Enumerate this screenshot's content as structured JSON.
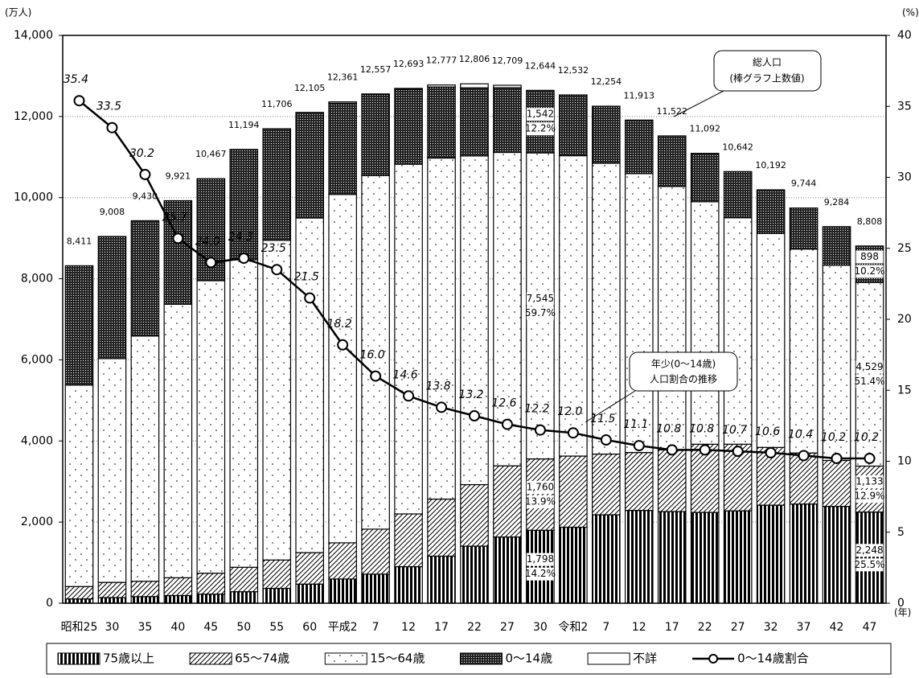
{
  "chart_data": {
    "type": "bar",
    "units": {
      "y": "(万人)",
      "y2": "(%)",
      "x": "(年)"
    },
    "categories": [
      "昭和25",
      "30",
      "35",
      "40",
      "45",
      "50",
      "55",
      "60",
      "平成2",
      "7",
      "12",
      "17",
      "22",
      "27",
      "30",
      "令和2",
      "7",
      "12",
      "17",
      "22",
      "27",
      "32",
      "37",
      "42",
      "47"
    ],
    "ylim": [
      0,
      14000
    ],
    "yticks": [
      0,
      {
        "value": 2000,
        "label": "2,000"
      },
      {
        "value": 4000,
        "label": "4,000"
      },
      {
        "value": 6000,
        "label": "6,000"
      },
      {
        "value": 8000,
        "label": "8,000"
      },
      {
        "value": 10000,
        "label": "10,000"
      },
      {
        "value": 12000,
        "label": "12,000"
      },
      {
        "value": 14000,
        "label": "14,000"
      }
    ],
    "y2lim": [
      0,
      40
    ],
    "y2ticks": [
      0,
      5,
      10,
      15,
      20,
      25,
      30,
      35,
      40
    ],
    "grid": true,
    "series": [
      {
        "name": "75歳以上",
        "color": "#000000",
        "pattern": "vstripe",
        "values": [
          106,
          139,
          163,
          189,
          224,
          284,
          366,
          471,
          597,
          717,
          901,
          1160,
          1407,
          1632,
          1798,
          1874,
          2180,
          2288,
          2260,
          2239,
          2277,
          2417,
          2446,
          2387,
          2248
        ],
        "value_labels": [
          null,
          null,
          null,
          null,
          null,
          null,
          null,
          null,
          null,
          null,
          null,
          null,
          null,
          null,
          "1,798",
          null,
          null,
          null,
          null,
          null,
          null,
          null,
          null,
          null,
          "2,248"
        ],
        "share_labels": [
          null,
          null,
          null,
          null,
          null,
          null,
          null,
          null,
          null,
          null,
          null,
          null,
          null,
          null,
          "14.2%",
          null,
          null,
          null,
          null,
          null,
          null,
          null,
          null,
          null,
          "25.5%"
        ]
      },
      {
        "name": "65～74歳",
        "color": "#000000",
        "pattern": "diag",
        "values": [
          305,
          374,
          378,
          439,
          516,
          602,
          699,
          776,
          892,
          1109,
          1301,
          1407,
          1517,
          1755,
          1760,
          1754,
          1497,
          1428,
          1522,
          1681,
          1643,
          1424,
          1258,
          1133,
          1133
        ],
        "value_labels": [
          null,
          null,
          null,
          null,
          null,
          null,
          null,
          null,
          null,
          null,
          null,
          null,
          null,
          null,
          "1,760",
          null,
          null,
          null,
          null,
          null,
          null,
          null,
          null,
          null,
          "1,133"
        ],
        "share_labels": [
          null,
          null,
          null,
          null,
          null,
          null,
          null,
          null,
          null,
          null,
          null,
          null,
          null,
          null,
          "13.9%",
          null,
          null,
          null,
          null,
          null,
          null,
          null,
          null,
          null,
          "12.9%"
        ]
      },
      {
        "name": "15～64歳",
        "color": "#000000",
        "pattern": "dots",
        "values": [
          4966,
          5517,
          6047,
          6744,
          7212,
          7581,
          7883,
          8251,
          8590,
          8716,
          8622,
          8409,
          8103,
          7728,
          7545,
          7406,
          7170,
          6875,
          6494,
          5978,
          5584,
          5275,
          5028,
          4813,
          4529
        ],
        "value_labels": [
          null,
          null,
          null,
          null,
          null,
          null,
          null,
          null,
          null,
          null,
          null,
          null,
          null,
          null,
          "7,545",
          null,
          null,
          null,
          null,
          null,
          null,
          null,
          null,
          null,
          "4,529"
        ],
        "share_labels": [
          null,
          null,
          null,
          null,
          null,
          null,
          null,
          null,
          null,
          null,
          null,
          null,
          null,
          null,
          "59.7%",
          null,
          null,
          null,
          null,
          null,
          null,
          null,
          null,
          null,
          "51.4%"
        ]
      },
      {
        "name": "0～14歳",
        "color": "#000000",
        "pattern": "dense",
        "values": [
          2943,
          3012,
          2843,
          2553,
          2515,
          2722,
          2751,
          2603,
          2249,
          2001,
          1847,
          1752,
          1680,
          1595,
          1542,
          1498,
          1407,
          1321,
          1246,
          1194,
          1138,
          1077,
          1012,
          951,
          898
        ],
        "value_labels": [
          null,
          null,
          null,
          null,
          null,
          null,
          null,
          null,
          null,
          null,
          null,
          null,
          null,
          null,
          "1,542",
          null,
          null,
          null,
          null,
          null,
          null,
          null,
          null,
          null,
          "898"
        ],
        "share_labels": [
          null,
          null,
          null,
          null,
          null,
          null,
          null,
          null,
          null,
          null,
          null,
          null,
          null,
          null,
          "12.2%",
          null,
          null,
          null,
          null,
          null,
          null,
          null,
          null,
          null,
          "10.2%"
        ]
      },
      {
        "name": "不詳",
        "color": "#000000",
        "pattern": "blank",
        "values": [
          0,
          0,
          0,
          0,
          0,
          0,
          0,
          0,
          33,
          14,
          22,
          49,
          99,
          60,
          0,
          0,
          0,
          0,
          0,
          0,
          0,
          0,
          0,
          0,
          0
        ]
      },
      {
        "name": "0～14歳割合",
        "type": "line",
        "axis": "y2",
        "color": "#000000",
        "values": [
          35.4,
          33.5,
          30.2,
          25.7,
          24.0,
          24.3,
          23.5,
          21.5,
          18.2,
          16.0,
          14.6,
          13.8,
          13.2,
          12.6,
          12.2,
          12.0,
          11.5,
          11.1,
          10.8,
          10.8,
          10.7,
          10.6,
          10.4,
          10.2,
          10.2
        ],
        "value_labels": [
          "35.4",
          "33.5",
          "30.2",
          "25.7",
          "24.0",
          "24.3",
          "23.5",
          "21.5",
          "18.2",
          "16.0",
          "14.6",
          "13.8",
          "13.2",
          "12.6",
          "12.2",
          "12.0",
          "11.5",
          "11.1",
          "10.8",
          "10.8",
          "10.7",
          "10.6",
          "10.4",
          "10.2",
          "10.2"
        ]
      }
    ],
    "total_labels": [
      "8,411",
      "9,008",
      "9,430",
      "9,921",
      "10,467",
      "11,194",
      "11,706",
      "12,105",
      "12,361",
      "12,557",
      "12,693",
      "12,777",
      "12,806",
      "12,709",
      "12,644",
      "12,532",
      "12,254",
      "11,913",
      "11,522",
      "11,092",
      "10,642",
      "10,192",
      "9,744",
      "9,284",
      "8,808"
    ],
    "annotations": [
      {
        "lines": [
          "総人口",
          "(棒グラフ上数値)"
        ]
      },
      {
        "lines": [
          "年少(0～14歳)",
          "人口割合の推移"
        ]
      }
    ]
  }
}
